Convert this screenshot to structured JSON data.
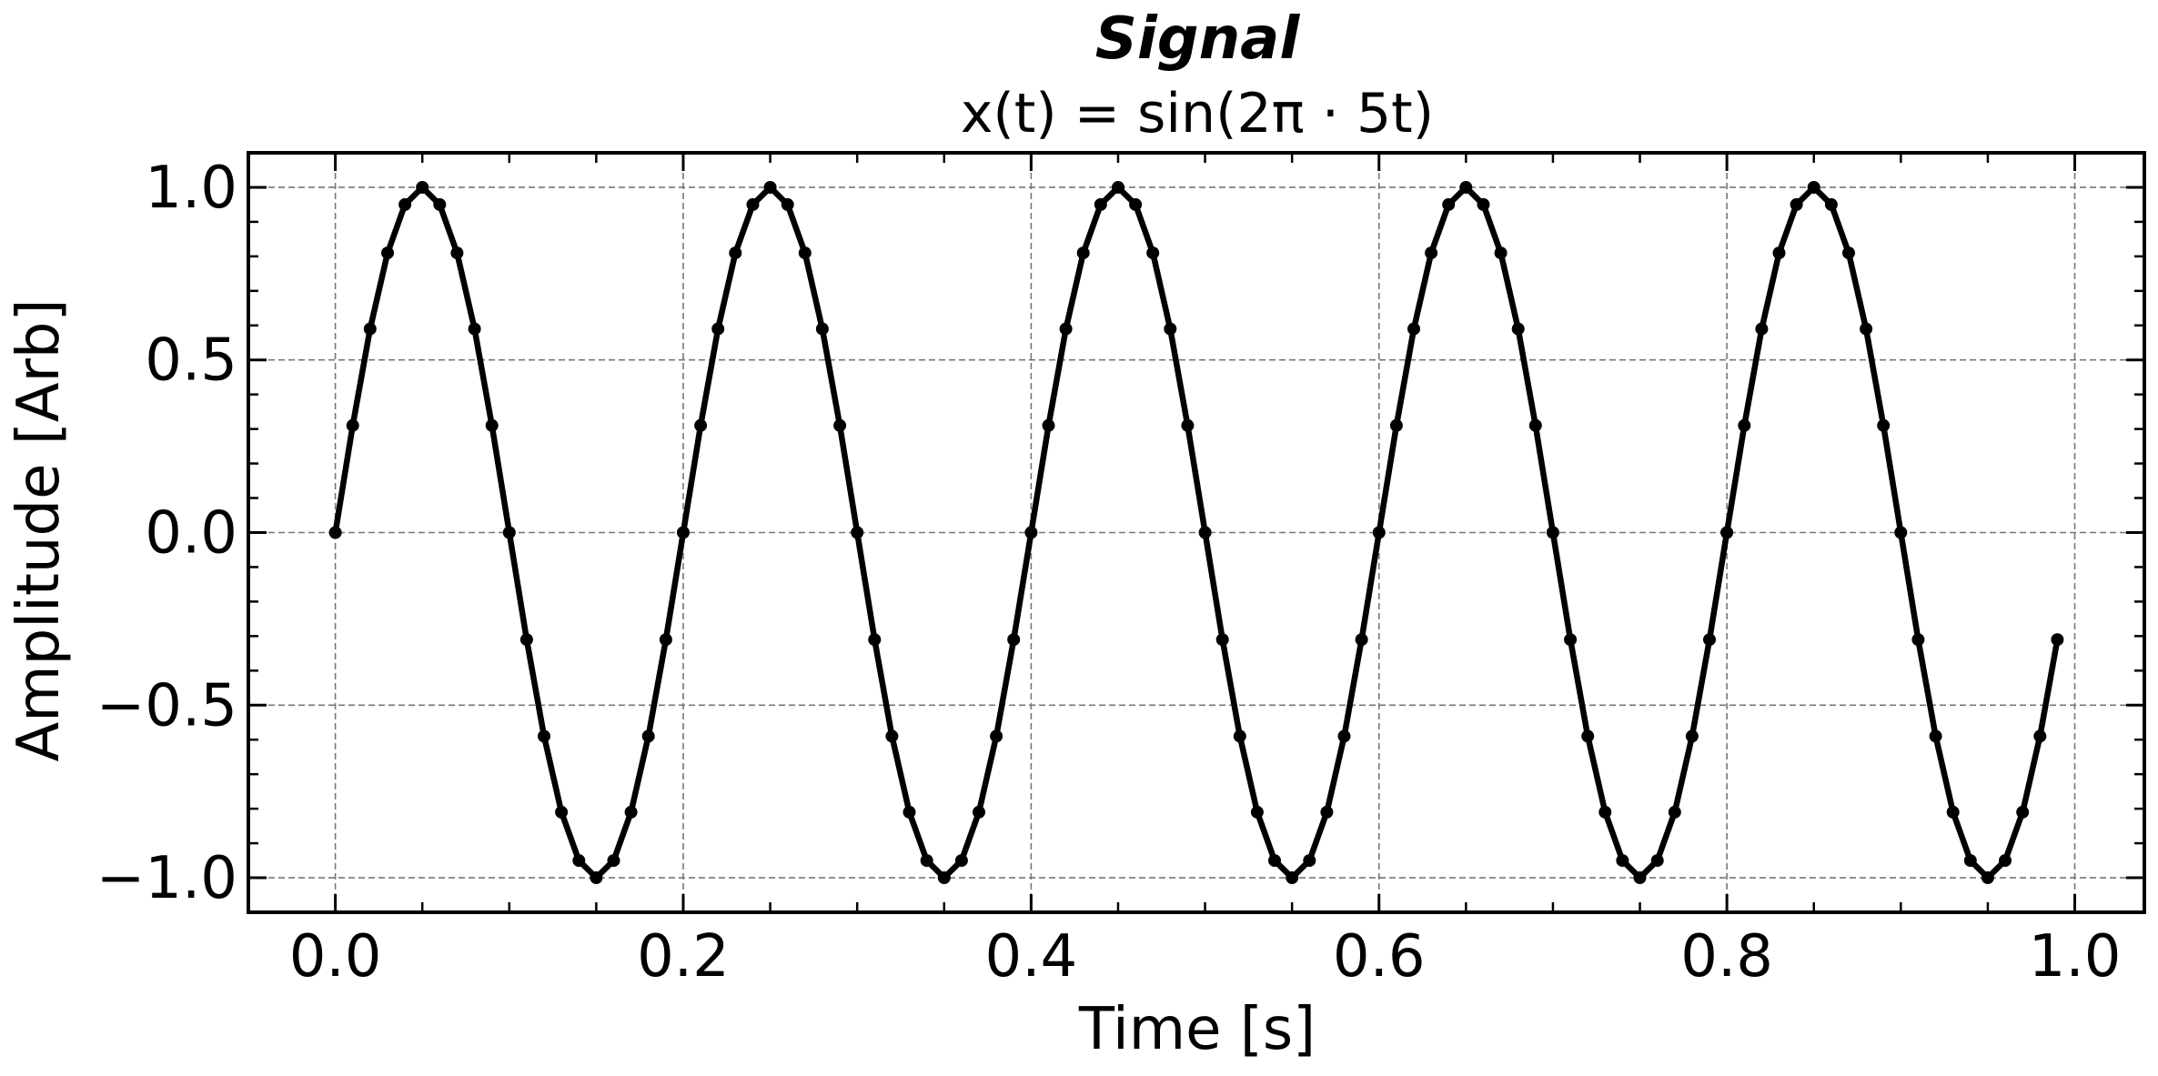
{
  "chart_data": {
    "type": "line",
    "title": "Signal",
    "subtitle": "x(t) = sin(2π · 5t)",
    "xlabel": "Time [s]",
    "ylabel": "Amplitude [Arb]",
    "xlim": [
      -0.05,
      1.04
    ],
    "ylim": [
      -1.1,
      1.1
    ],
    "xticks": [
      0.0,
      0.2,
      0.4,
      0.6,
      0.8,
      1.0
    ],
    "xtick_labels": [
      "0.0",
      "0.2",
      "0.4",
      "0.6",
      "0.8",
      "1.0"
    ],
    "yticks": [
      -1.0,
      -0.5,
      0.0,
      0.5,
      1.0
    ],
    "ytick_labels": [
      "−1.0",
      "−0.5",
      "0.0",
      "0.5",
      "1.0"
    ],
    "grid": true,
    "grid_style": "dashed",
    "line_color": "#000000",
    "marker": "circle",
    "series": [
      {
        "x": [
          0.0,
          0.01,
          0.02,
          0.03,
          0.04,
          0.05,
          0.06,
          0.07,
          0.08,
          0.09,
          0.1,
          0.11,
          0.12,
          0.13,
          0.14,
          0.15,
          0.16,
          0.17,
          0.18,
          0.19,
          0.2,
          0.21,
          0.22,
          0.23,
          0.24,
          0.25,
          0.26,
          0.27,
          0.28,
          0.29,
          0.3,
          0.31,
          0.32,
          0.33,
          0.34,
          0.35,
          0.36,
          0.37,
          0.38,
          0.39,
          0.4,
          0.41,
          0.42,
          0.43,
          0.44,
          0.45,
          0.46,
          0.47,
          0.48,
          0.49,
          0.5,
          0.51,
          0.52,
          0.53,
          0.54,
          0.55,
          0.56,
          0.57,
          0.58,
          0.59,
          0.6,
          0.61,
          0.62,
          0.63,
          0.64,
          0.65,
          0.66,
          0.67,
          0.68,
          0.69,
          0.7,
          0.71,
          0.72,
          0.73,
          0.74,
          0.75,
          0.76,
          0.77,
          0.78,
          0.79,
          0.8,
          0.81,
          0.82,
          0.83,
          0.84,
          0.85,
          0.86,
          0.87,
          0.88,
          0.89,
          0.9,
          0.91,
          0.92,
          0.93,
          0.94,
          0.95,
          0.96,
          0.97,
          0.98,
          0.99
        ],
        "y": [
          0.0,
          0.31,
          0.59,
          0.81,
          0.95,
          1.0,
          0.95,
          0.81,
          0.59,
          0.31,
          0.0,
          -0.31,
          -0.59,
          -0.81,
          -0.95,
          -1.0,
          -0.95,
          -0.81,
          -0.59,
          -0.31,
          0.0,
          0.31,
          0.59,
          0.81,
          0.95,
          1.0,
          0.95,
          0.81,
          0.59,
          0.31,
          0.0,
          -0.31,
          -0.59,
          -0.81,
          -0.95,
          -1.0,
          -0.95,
          -0.81,
          -0.59,
          -0.31,
          0.0,
          0.31,
          0.59,
          0.81,
          0.95,
          1.0,
          0.95,
          0.81,
          0.59,
          0.31,
          0.0,
          -0.31,
          -0.59,
          -0.81,
          -0.95,
          -1.0,
          -0.95,
          -0.81,
          -0.59,
          -0.31,
          0.0,
          0.31,
          0.59,
          0.81,
          0.95,
          1.0,
          0.95,
          0.81,
          0.59,
          0.31,
          0.0,
          -0.31,
          -0.59,
          -0.81,
          -0.95,
          -1.0,
          -0.95,
          -0.81,
          -0.59,
          -0.31,
          0.0,
          0.31,
          0.59,
          0.81,
          0.95,
          1.0,
          0.95,
          0.81,
          0.59,
          0.31,
          0.0,
          -0.31,
          -0.59,
          -0.81,
          -0.95,
          -1.0,
          -0.95,
          -0.81,
          -0.59,
          -0.31
        ]
      }
    ]
  }
}
